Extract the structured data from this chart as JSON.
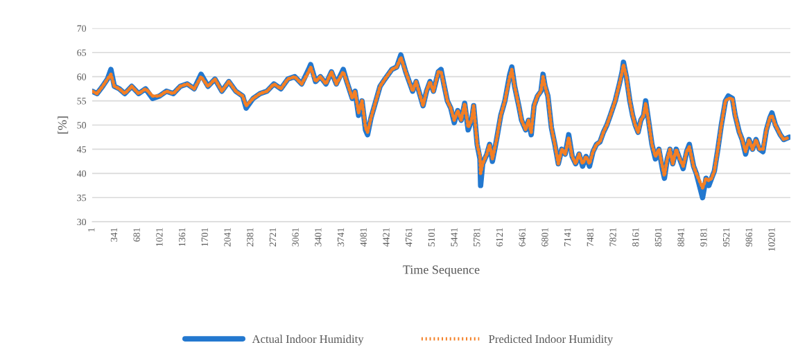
{
  "chart_data": {
    "type": "line",
    "xlabel": "Time Sequence",
    "ylabel": "[%]",
    "x": [
      1,
      74,
      157,
      230,
      282,
      334,
      407,
      490,
      594,
      698,
      802,
      906,
      1010,
      1114,
      1218,
      1322,
      1426,
      1530,
      1634,
      1738,
      1842,
      1946,
      2050,
      2154,
      2258,
      2310,
      2414,
      2518,
      2622,
      2726,
      2830,
      2934,
      3038,
      3142,
      3246,
      3277,
      3350,
      3423,
      3506,
      3589,
      3662,
      3766,
      3818,
      3901,
      3943,
      3995,
      4047,
      4099,
      4130,
      4182,
      4255,
      4317,
      4390,
      4494,
      4567,
      4629,
      4702,
      4754,
      4806,
      4858,
      4910,
      4962,
      5014,
      5066,
      5118,
      5191,
      5232,
      5274,
      5326,
      5378,
      5430,
      5482,
      5534,
      5586,
      5638,
      5690,
      5721,
      5773,
      5815,
      5825,
      5856,
      5919,
      5960,
      6002,
      6064,
      6127,
      6189,
      6262,
      6293,
      6335,
      6397,
      6439,
      6501,
      6543,
      6584,
      6626,
      6678,
      6730,
      6761,
      6792,
      6834,
      6886,
      6938,
      6990,
      7042,
      7094,
      7146,
      7198,
      7250,
      7302,
      7354,
      7406,
      7458,
      7510,
      7562,
      7614,
      7666,
      7718,
      7770,
      7843,
      7906,
      7947,
      7967,
      8010,
      8062,
      8104,
      8144,
      8186,
      8227,
      8269,
      8300,
      8342,
      8394,
      8446,
      8498,
      8550,
      8581,
      8623,
      8664,
      8706,
      8758,
      8810,
      8862,
      8914,
      8955,
      9018,
      9059,
      9153,
      9205,
      9247,
      9288,
      9330,
      9382,
      9434,
      9496,
      9538,
      9600,
      9642,
      9704,
      9746,
      9798,
      9850,
      9902,
      9954,
      10006,
      10058,
      10110,
      10162,
      10193,
      10245,
      10318,
      10370,
      10453
    ],
    "series": [
      {
        "name": "Actual Indoor Humidity",
        "color": "#2378cf",
        "line_style": "solid",
        "values": [
          57,
          56.5,
          58,
          59.5,
          61.5,
          58,
          57.5,
          56.5,
          58,
          56.5,
          57.5,
          55.5,
          56,
          57,
          56.5,
          58,
          58.5,
          57.5,
          60.5,
          58,
          59.5,
          57,
          59,
          57,
          56,
          53.5,
          55.5,
          56.5,
          57,
          58.5,
          57.5,
          59.5,
          60,
          58.5,
          61.5,
          62.5,
          59,
          60,
          58.5,
          61,
          58.5,
          61.5,
          59,
          55.5,
          57,
          52,
          55,
          49,
          48,
          51.5,
          55,
          58,
          59.5,
          61.5,
          62,
          64.5,
          61,
          59,
          57,
          59,
          56.5,
          54,
          57,
          59,
          57,
          61,
          61.5,
          58.5,
          55,
          53.5,
          50.5,
          53,
          51,
          54.5,
          49,
          51,
          54,
          46,
          43,
          37.5,
          42,
          44,
          46,
          42.5,
          47,
          52,
          55,
          60.5,
          62,
          58,
          54,
          51,
          49,
          51,
          48,
          54,
          56,
          57,
          60.5,
          58,
          56,
          49.5,
          46,
          42,
          45,
          44,
          48,
          43.5,
          42,
          44,
          41.5,
          43.5,
          41.5,
          44.5,
          46,
          46.5,
          48.5,
          50,
          52,
          55,
          58.5,
          61,
          63,
          60,
          55,
          52,
          50,
          48.5,
          51,
          52,
          55,
          51,
          46,
          43,
          45,
          41,
          39,
          43,
          45,
          42,
          45,
          43,
          41,
          44.5,
          46,
          41.5,
          40,
          35,
          39,
          37.5,
          39,
          40.5,
          45,
          50,
          55,
          56,
          55.5,
          52,
          48.5,
          47,
          44,
          47,
          45,
          47,
          45,
          44.5,
          49,
          51.5,
          52.5,
          50,
          48,
          47,
          47.5
        ]
      },
      {
        "name": "Predicted Indoor Humidity",
        "color": "#f47f24",
        "line_style": "dotted",
        "values": [
          57,
          56.5,
          58,
          59.5,
          60.5,
          58,
          57.5,
          56.5,
          58,
          56.5,
          57.5,
          56,
          56,
          57,
          56.5,
          58,
          58.5,
          57.5,
          60,
          58,
          59.5,
          57,
          59,
          57,
          56,
          54,
          55.5,
          56.5,
          57,
          58.5,
          57.5,
          59.5,
          60,
          58.5,
          61,
          62,
          59,
          60,
          58.5,
          61,
          58.5,
          61,
          59,
          55.5,
          57,
          52.5,
          55,
          49.5,
          48.5,
          51.5,
          55,
          58,
          59.5,
          61.5,
          62,
          64,
          61,
          59,
          57,
          59,
          56.5,
          54,
          57,
          59,
          57,
          61,
          61,
          58.5,
          55,
          53.5,
          51,
          53,
          51,
          54.5,
          49.5,
          51,
          54,
          46,
          43.5,
          40,
          42,
          44,
          46,
          43,
          47,
          52,
          55,
          60,
          61.5,
          58,
          54,
          51,
          49,
          51,
          48.5,
          54,
          56,
          57,
          60,
          58,
          56,
          49.5,
          46,
          42,
          45,
          44,
          47.5,
          43.5,
          42,
          44,
          42,
          43.5,
          42,
          44.5,
          46,
          46.5,
          48.5,
          50,
          52,
          55,
          58.5,
          61,
          62.5,
          60,
          55,
          52,
          50,
          48.5,
          51,
          52,
          54.5,
          51,
          46,
          43.5,
          45,
          41.5,
          39.5,
          43,
          45,
          42,
          45,
          43,
          41.5,
          44.5,
          45.5,
          41.5,
          40,
          37,
          39,
          38.5,
          39,
          40.5,
          45,
          50,
          55,
          55.5,
          55.5,
          52,
          48.5,
          47,
          44.5,
          47,
          45,
          47,
          45,
          45,
          49,
          51.5,
          52,
          50,
          48,
          47,
          47.5
        ]
      }
    ],
    "xlim": [
      1,
      10470
    ],
    "xticks": [
      1,
      341,
      681,
      1021,
      1361,
      1701,
      2041,
      2381,
      2721,
      3061,
      3401,
      3741,
      4081,
      4421,
      4761,
      5101,
      5441,
      5781,
      6121,
      6461,
      6801,
      7141,
      7481,
      7821,
      8161,
      8501,
      8841,
      9181,
      9521,
      9861,
      10201
    ],
    "ylim": [
      30,
      70
    ],
    "yticks": [
      30,
      35,
      40,
      45,
      50,
      55,
      60,
      65,
      70
    ],
    "grid": "y",
    "legend": "bottom",
    "marker": "none"
  }
}
